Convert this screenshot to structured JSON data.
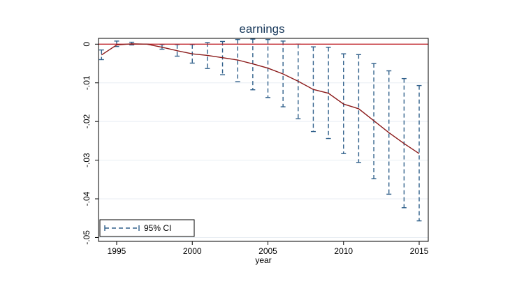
{
  "chart_data": {
    "type": "line",
    "title": "earnings",
    "xlabel": "year",
    "ylabel": "",
    "xlim": [
      1993.8,
      2015.6
    ],
    "ylim": [
      -0.051,
      0.0015
    ],
    "xticks": [
      1995,
      2000,
      2005,
      2010,
      2015
    ],
    "xtick_labels": [
      "1995",
      "2000",
      "2005",
      "2010",
      "2015"
    ],
    "yticks": [
      0,
      -0.01,
      -0.02,
      -0.03,
      -0.04,
      -0.05
    ],
    "ytick_labels": [
      "0",
      "-.01",
      "-.02",
      "-.03",
      "-.04",
      "-.05"
    ],
    "grid": "horizontal",
    "reference_line_y": 0,
    "legend_position": "bottom-left",
    "legend": [
      {
        "label": "95% CI"
      }
    ],
    "colors": {
      "estimate": "#8b1a1a",
      "ci": "#2f5f8a",
      "reference": "#c0272d",
      "grid": "#e8eef3"
    },
    "series": [
      {
        "kind": "estimate",
        "x": [
          1994,
          1995,
          1996,
          1997,
          1998,
          1999,
          2000,
          2001,
          2002,
          2003,
          2004,
          2005,
          2006,
          2007,
          2008,
          2009,
          2010,
          2011,
          2012,
          2013,
          2014,
          2015
        ],
        "y": [
          -0.0028,
          -0.0002,
          0.0001,
          0.0,
          -0.0008,
          -0.0017,
          -0.0025,
          -0.0029,
          -0.0035,
          -0.0041,
          -0.0051,
          -0.0062,
          -0.0077,
          -0.0096,
          -0.0117,
          -0.0127,
          -0.0155,
          -0.0167,
          -0.0198,
          -0.0229,
          -0.0257,
          -0.0283
        ]
      },
      {
        "kind": "ci",
        "name": "95% CI",
        "x": [
          1994,
          1995,
          1996,
          1997,
          1998,
          1999,
          2000,
          2001,
          2002,
          2003,
          2004,
          2005,
          2006,
          2007,
          2008,
          2009,
          2010,
          2011,
          2012,
          2013,
          2014,
          2015
        ],
        "upper": [
          -0.0015,
          0.0008,
          0.0005,
          0.0,
          -0.0001,
          -0.0001,
          -0.0001,
          0.0004,
          0.0007,
          0.0012,
          0.0013,
          0.0012,
          0.0008,
          0.0,
          -0.0007,
          -0.0008,
          -0.0025,
          -0.0027,
          -0.005,
          -0.0069,
          -0.0089,
          -0.0107
        ],
        "lower": [
          -0.004,
          -0.0006,
          -0.0002,
          0.0,
          -0.0013,
          -0.0031,
          -0.0049,
          -0.0063,
          -0.0079,
          -0.0097,
          -0.0118,
          -0.0138,
          -0.0162,
          -0.0193,
          -0.0226,
          -0.0244,
          -0.0283,
          -0.0306,
          -0.0348,
          -0.0388,
          -0.0423,
          -0.0457
        ]
      }
    ]
  }
}
